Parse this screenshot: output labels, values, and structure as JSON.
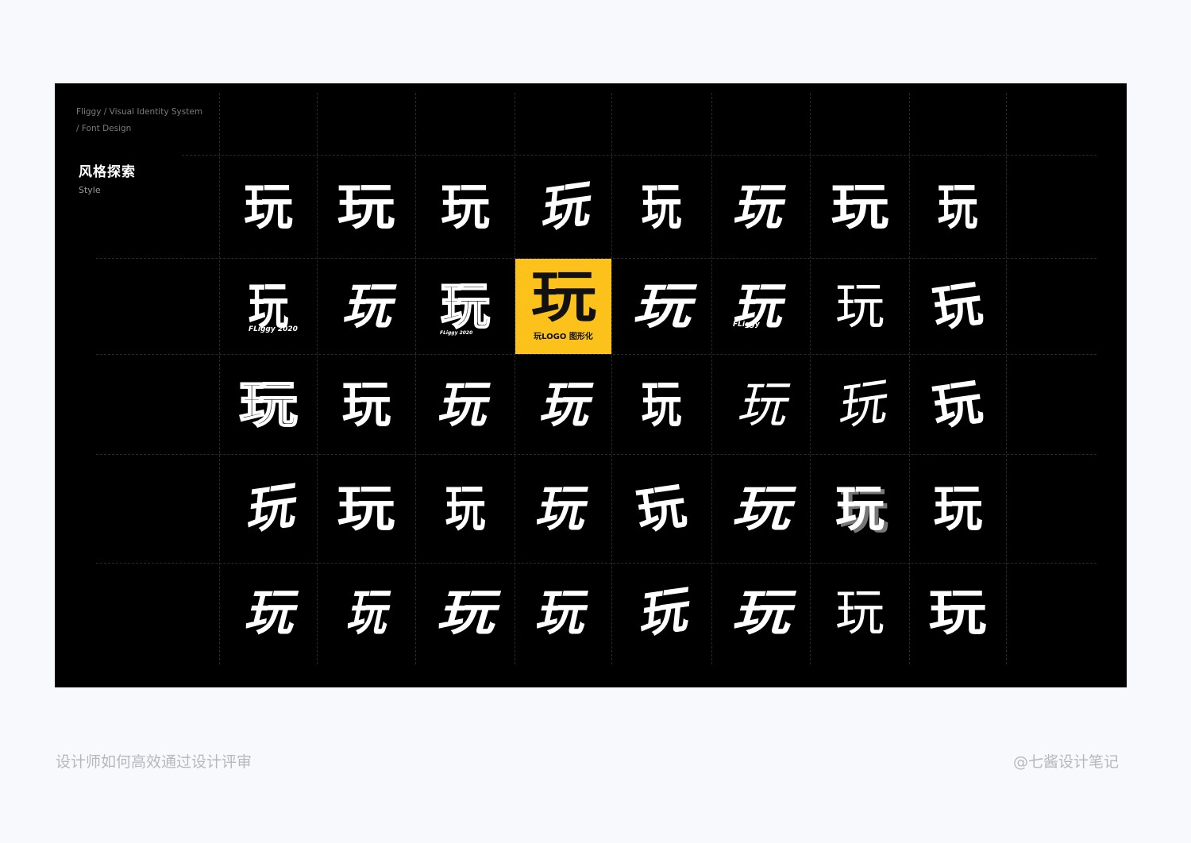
{
  "header": {
    "project": "Fliggy / Visual Identity System",
    "section": "/ Font Design",
    "title": "风格探索",
    "subtitle": "Style"
  },
  "grid": {
    "glyph": "玩",
    "rows": 5,
    "columns": 8,
    "highlight": {
      "caption": "玩LOGO 图形化",
      "color": "#fcc21b"
    },
    "cell_tags": {
      "r1c1": "FLiggy 2020",
      "r1c3": "FLiggy 2020",
      "r1c6": "FLiggy"
    }
  },
  "footer": {
    "left_text": "设计师如何高效通过设计评审",
    "right_text": "@七酱设计笔记"
  }
}
